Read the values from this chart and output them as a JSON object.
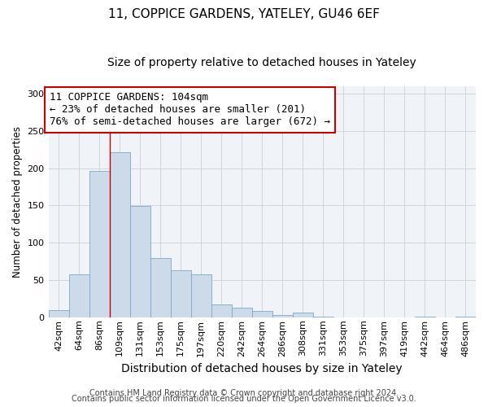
{
  "title": "11, COPPICE GARDENS, YATELEY, GU46 6EF",
  "subtitle": "Size of property relative to detached houses in Yateley",
  "xlabel": "Distribution of detached houses by size in Yateley",
  "ylabel": "Number of detached properties",
  "bin_labels": [
    "42sqm",
    "64sqm",
    "86sqm",
    "109sqm",
    "131sqm",
    "153sqm",
    "175sqm",
    "197sqm",
    "220sqm",
    "242sqm",
    "264sqm",
    "286sqm",
    "308sqm",
    "331sqm",
    "353sqm",
    "375sqm",
    "397sqm",
    "419sqm",
    "442sqm",
    "464sqm",
    "486sqm"
  ],
  "bar_values": [
    10,
    58,
    196,
    222,
    149,
    80,
    63,
    58,
    17,
    13,
    9,
    3,
    6,
    1,
    0,
    0,
    0,
    0,
    1,
    0,
    1
  ],
  "bar_color": "#cddaea",
  "bar_edge_color": "#7aaac8",
  "vline_x_index": 3,
  "vline_color": "#cc0000",
  "annotation_title": "11 COPPICE GARDENS: 104sqm",
  "annotation_line1": "← 23% of detached houses are smaller (201)",
  "annotation_line2": "76% of semi-detached houses are larger (672) →",
  "annotation_box_color": "#ffffff",
  "annotation_box_edge": "#cc0000",
  "ylim": [
    0,
    310
  ],
  "yticks": [
    0,
    50,
    100,
    150,
    200,
    250,
    300
  ],
  "footer_line1": "Contains HM Land Registry data © Crown copyright and database right 2024.",
  "footer_line2": "Contains public sector information licensed under the Open Government Licence v3.0.",
  "title_fontsize": 11,
  "subtitle_fontsize": 10,
  "xlabel_fontsize": 10,
  "ylabel_fontsize": 8.5,
  "tick_fontsize": 8,
  "annotation_fontsize": 9,
  "footer_fontsize": 7
}
